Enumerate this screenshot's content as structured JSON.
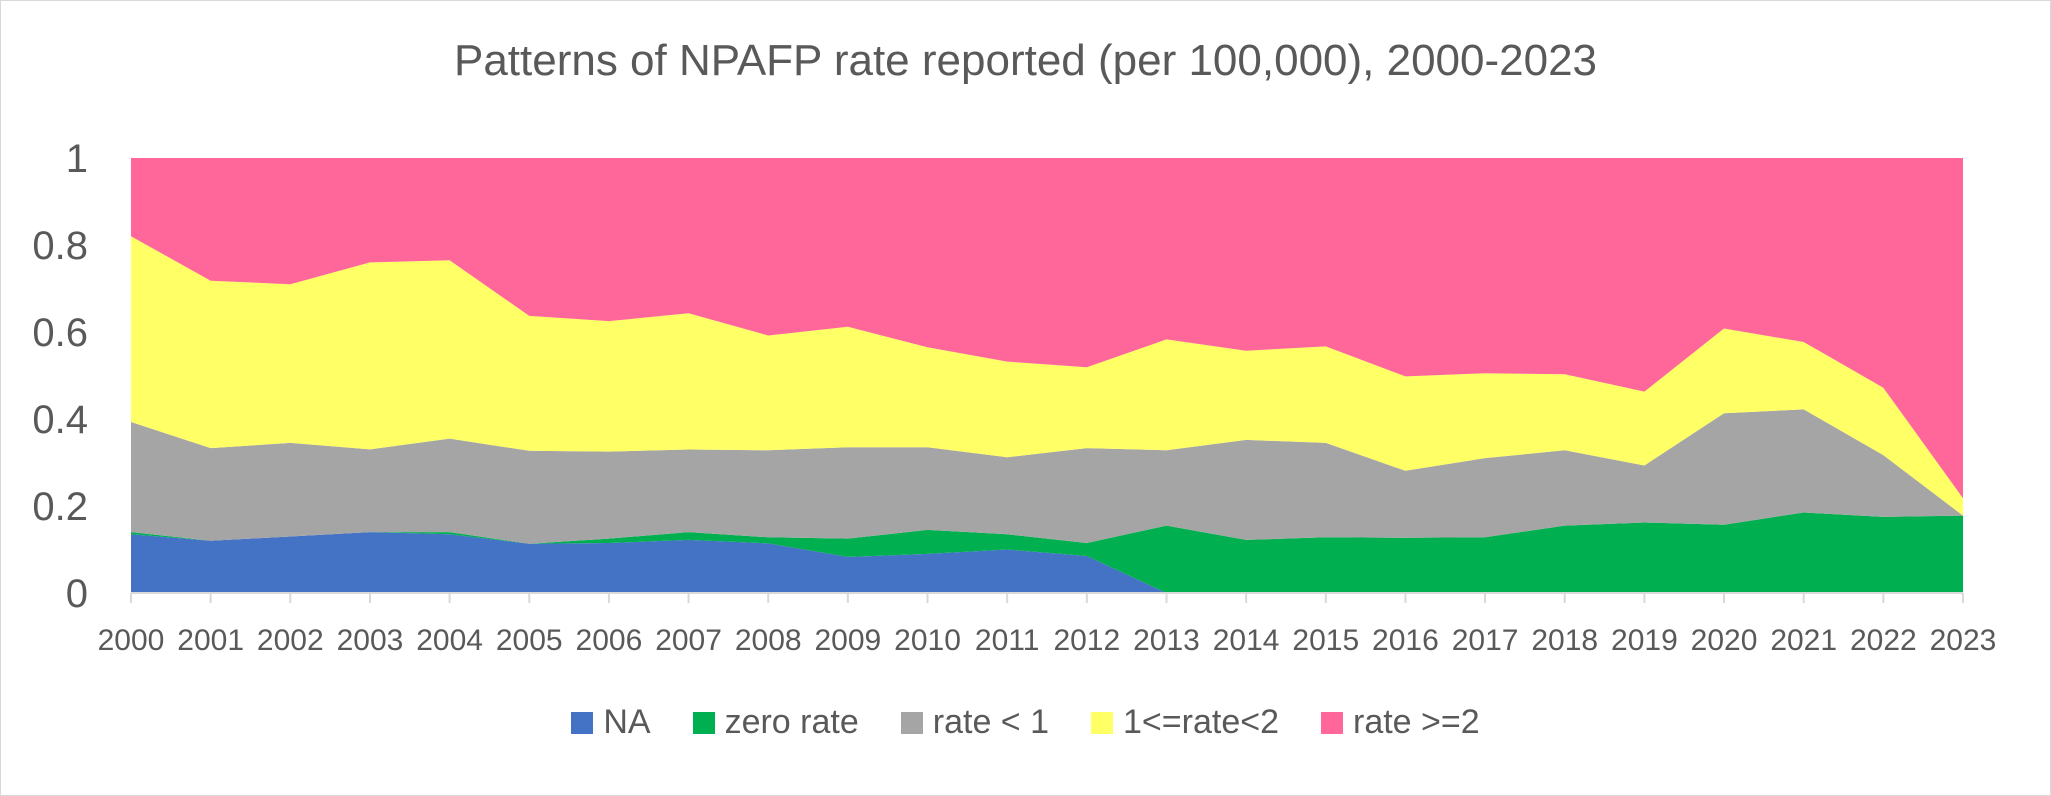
{
  "chart_data": {
    "type": "area",
    "stacked": true,
    "normalized": true,
    "title": "Patterns of NPAFP rate reported (per 100,000), 2000-2023",
    "x": [
      "2000",
      "2001",
      "2002",
      "2003",
      "2004",
      "2005",
      "2006",
      "2007",
      "2008",
      "2009",
      "2010",
      "2011",
      "2012",
      "2013",
      "2014",
      "2015",
      "2016",
      "2017",
      "2018",
      "2019",
      "2020",
      "2021",
      "2022",
      "2023"
    ],
    "ylim": [
      0,
      1
    ],
    "yticks": [
      "0",
      "0.2",
      "0.4",
      "0.6",
      "0.8",
      "1"
    ],
    "grid": false,
    "legend_position": "bottom",
    "series": [
      {
        "name": "NA",
        "color": "#4472c4",
        "values": [
          0.135,
          0.12,
          0.13,
          0.14,
          0.135,
          0.113,
          0.115,
          0.122,
          0.114,
          0.083,
          0.09,
          0.1,
          0.085,
          0.0,
          0.0,
          0.0,
          0.0,
          0.0,
          0.0,
          0.0,
          0.0,
          0.0,
          0.0,
          0.0
        ]
      },
      {
        "name": "zero rate",
        "color": "#00b050",
        "values": [
          0.005,
          0.0,
          0.0,
          0.0,
          0.005,
          0.0,
          0.01,
          0.018,
          0.014,
          0.042,
          0.055,
          0.035,
          0.03,
          0.155,
          0.122,
          0.128,
          0.127,
          0.128,
          0.155,
          0.162,
          0.157,
          0.185,
          0.175,
          0.178
        ]
      },
      {
        "name": "rate < 1",
        "color": "#a5a5a5",
        "values": [
          0.253,
          0.213,
          0.215,
          0.19,
          0.215,
          0.214,
          0.2,
          0.19,
          0.2,
          0.21,
          0.19,
          0.177,
          0.218,
          0.173,
          0.23,
          0.217,
          0.154,
          0.182,
          0.173,
          0.131,
          0.256,
          0.237,
          0.142,
          0.0
        ]
      },
      {
        "name": "1<=rate<2",
        "color": "#ffff66",
        "values": [
          0.427,
          0.385,
          0.365,
          0.43,
          0.41,
          0.31,
          0.3,
          0.313,
          0.264,
          0.277,
          0.23,
          0.22,
          0.186,
          0.255,
          0.205,
          0.222,
          0.217,
          0.195,
          0.175,
          0.17,
          0.195,
          0.155,
          0.155,
          0.04
        ]
      },
      {
        "name": "rate >=2",
        "color": "#ff6699",
        "values": [
          0.18,
          0.282,
          0.29,
          0.24,
          0.235,
          0.363,
          0.375,
          0.357,
          0.408,
          0.388,
          0.435,
          0.468,
          0.481,
          0.417,
          0.443,
          0.433,
          0.502,
          0.495,
          0.497,
          0.537,
          0.392,
          0.423,
          0.528,
          0.782
        ]
      }
    ]
  }
}
